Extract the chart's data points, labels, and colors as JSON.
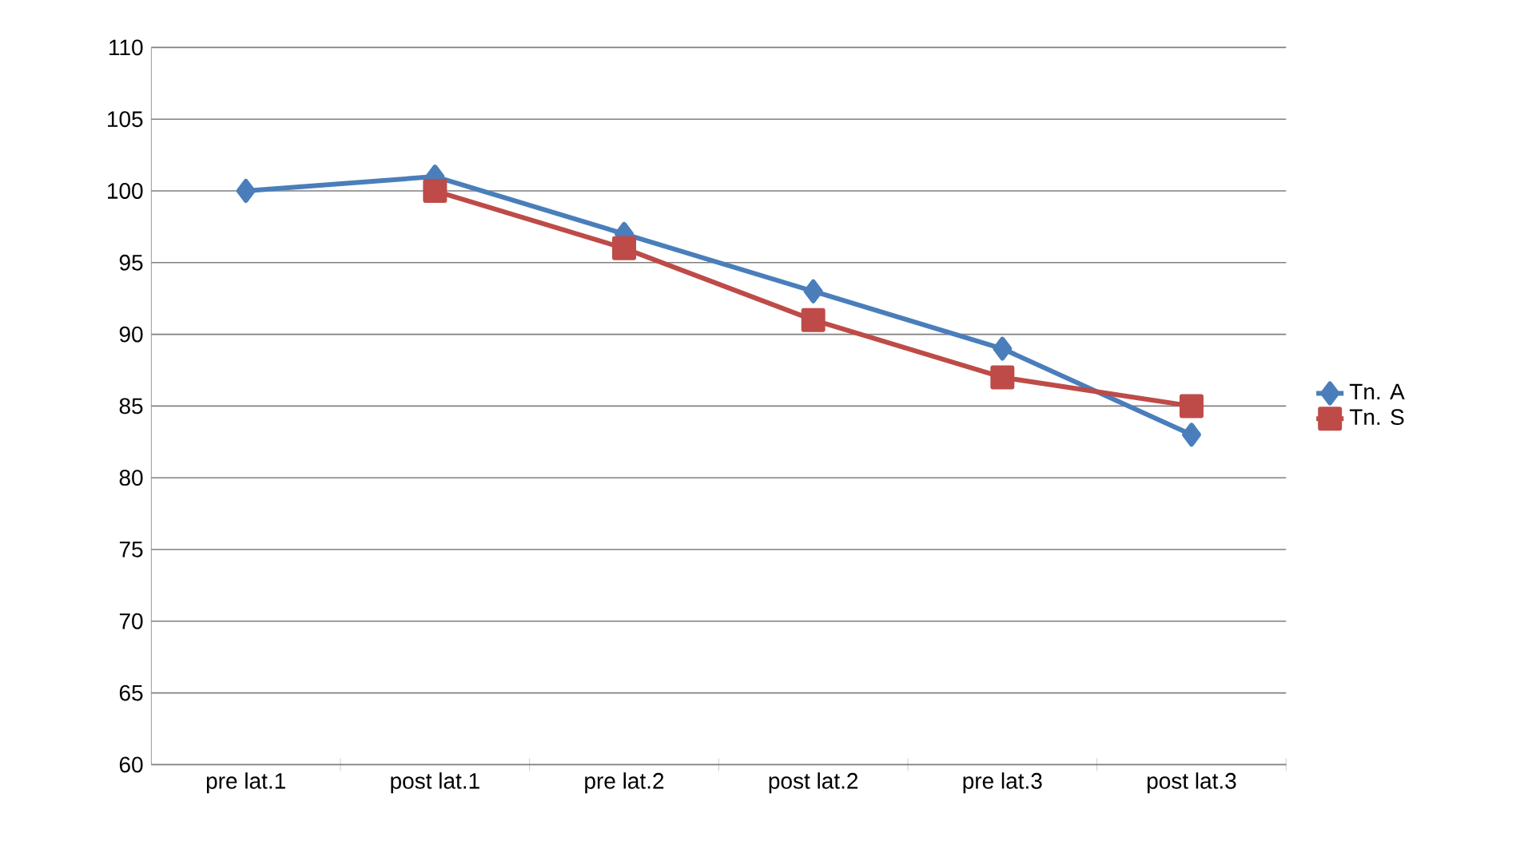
{
  "chart_data": {
    "type": "line",
    "categories": [
      "pre lat.1",
      "post lat.1",
      "pre lat.2",
      "post lat.2",
      "pre lat.3",
      "post lat.3"
    ],
    "series": [
      {
        "name": "Tn. A",
        "color": "#4a7ebb",
        "marker": "diamond",
        "values": [
          100,
          101,
          97,
          93,
          89,
          83
        ]
      },
      {
        "name": "Tn. S",
        "color": "#be4b48",
        "marker": "square",
        "values": [
          null,
          100,
          96,
          91,
          87,
          85
        ]
      }
    ],
    "ylim": [
      60,
      110
    ],
    "yticks": [
      60,
      65,
      70,
      75,
      80,
      85,
      90,
      95,
      100,
      105,
      110
    ],
    "grid": "y",
    "legend": "right",
    "line_style": "solid"
  }
}
